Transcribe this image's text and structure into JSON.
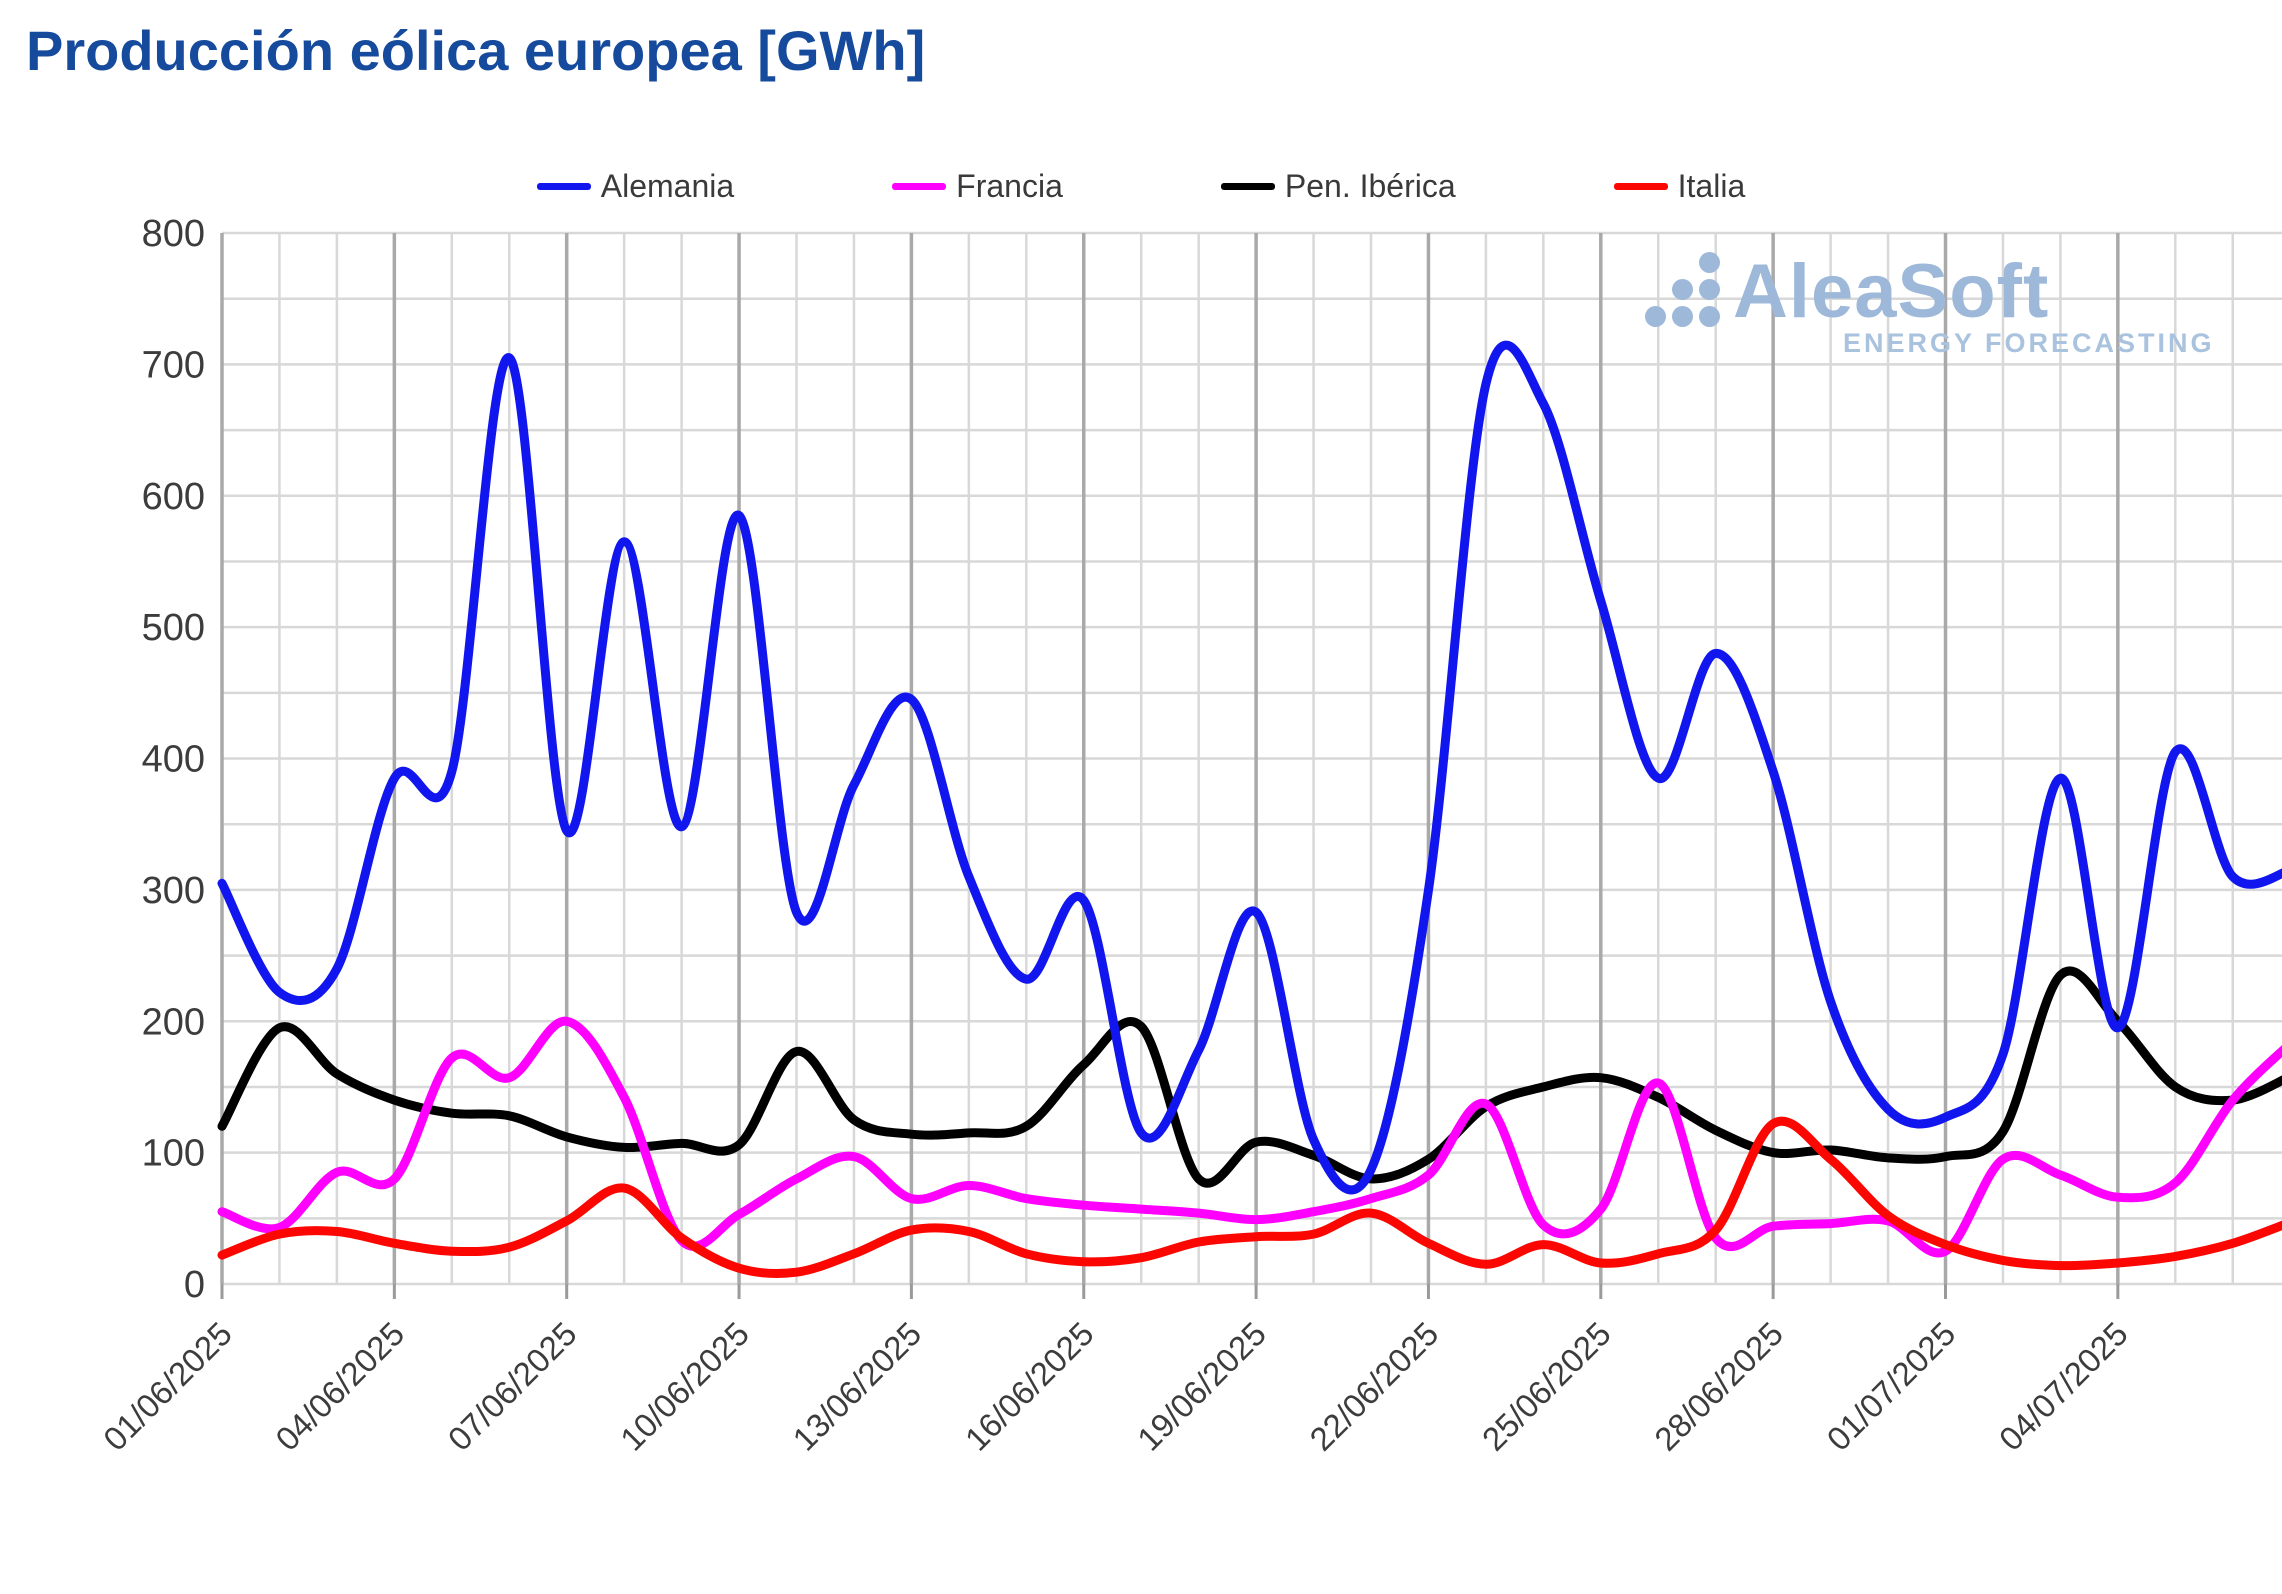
{
  "title": "Producción eólica europea [GWh]",
  "watermark": {
    "brand": "AleaSoft",
    "tagline": "ENERGY FORECASTING",
    "logo_color": "#9db8d9"
  },
  "chart_data": {
    "type": "line",
    "title": "Producción eólica europea [GWh]",
    "xlabel": "",
    "ylabel": "",
    "ylim": [
      0,
      800
    ],
    "y_label_step": 100,
    "y_grid_step": 50,
    "grid": true,
    "legend_position": "top",
    "days_total": 37,
    "start_date": "01/06/2025",
    "x_tick_day_indices": [
      0,
      3,
      6,
      9,
      12,
      15,
      18,
      21,
      24,
      27,
      30,
      33
    ],
    "x_tick_labels": [
      "01/06/2025",
      "04/06/2025",
      "07/06/2025",
      "10/06/2025",
      "13/06/2025",
      "16/06/2025",
      "19/06/2025",
      "22/06/2025",
      "25/06/2025",
      "28/06/2025",
      "01/07/2025",
      "04/07/2025"
    ],
    "colors": {
      "grid_minor": "#d8d8d8",
      "grid_major": "#a9a9a9",
      "axis_text": "#3c3c3c",
      "title_text": "#164a9c"
    },
    "series": [
      {
        "name": "Alemania",
        "color": "#1216ee",
        "values": [
          305,
          222,
          240,
          385,
          390,
          705,
          345,
          565,
          348,
          585,
          283,
          380,
          445,
          310,
          232,
          292,
          115,
          178,
          283,
          110,
          87,
          300,
          685,
          670,
          520,
          385,
          480,
          390,
          215,
          133,
          127,
          175,
          385,
          195,
          405,
          310,
          315
        ]
      },
      {
        "name": "Francia",
        "color": "#ff00ff",
        "values": [
          55,
          43,
          85,
          80,
          172,
          157,
          200,
          142,
          33,
          53,
          80,
          97,
          65,
          75,
          65,
          60,
          57,
          54,
          49,
          55,
          65,
          83,
          137,
          45,
          57,
          153,
          35,
          44,
          46,
          48,
          25,
          95,
          83,
          66,
          77,
          140,
          183
        ]
      },
      {
        "name": "Pen. Ibérica",
        "color": "#000000",
        "values": [
          120,
          195,
          160,
          140,
          130,
          128,
          112,
          104,
          107,
          106,
          177,
          125,
          114,
          115,
          120,
          167,
          196,
          80,
          108,
          98,
          80,
          95,
          135,
          150,
          157,
          142,
          117,
          100,
          102,
          96,
          97,
          116,
          235,
          200,
          150,
          140,
          158
        ]
      },
      {
        "name": "Italia",
        "color": "#fb0600",
        "values": [
          22,
          38,
          40,
          31,
          25,
          28,
          48,
          73,
          35,
          12,
          9,
          23,
          41,
          40,
          23,
          17,
          20,
          32,
          36,
          38,
          54,
          31,
          15,
          30,
          16,
          23,
          41,
          122,
          95,
          52,
          30,
          18,
          14,
          16,
          21,
          31,
          47
        ]
      }
    ]
  }
}
